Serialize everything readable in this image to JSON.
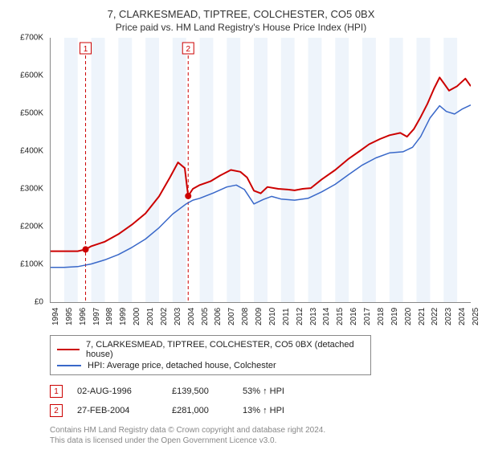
{
  "title_main": "7, CLARKESMEAD, TIPTREE, COLCHESTER, CO5 0BX",
  "title_sub": "Price paid vs. HM Land Registry's House Price Index (HPI)",
  "chart": {
    "type": "line",
    "background_color": "#ffffff",
    "plot_bg_color": "#ffffff",
    "band_color": "#eef4fb",
    "marker_line_color": "#cc0000",
    "x_start_year": 1994,
    "x_end_year": 2025,
    "x_tick_years": [
      1994,
      1995,
      1996,
      1997,
      1998,
      1999,
      2000,
      2001,
      2002,
      2003,
      2004,
      2005,
      2006,
      2007,
      2008,
      2009,
      2010,
      2011,
      2012,
      2013,
      2014,
      2015,
      2016,
      2017,
      2018,
      2019,
      2020,
      2021,
      2022,
      2023,
      2024,
      2025
    ],
    "ylim": [
      0,
      700000
    ],
    "ytick_step": 100000,
    "y_tick_labels": [
      "£0",
      "£100K",
      "£200K",
      "£300K",
      "£400K",
      "£500K",
      "£600K",
      "£700K"
    ],
    "grid": false,
    "series": [
      {
        "id": "property",
        "color": "#cc0000",
        "width": 2,
        "points": [
          [
            1994.0,
            135000
          ],
          [
            1995.0,
            135000
          ],
          [
            1996.0,
            135000
          ],
          [
            1996.58,
            139500
          ],
          [
            1997.0,
            148000
          ],
          [
            1998.0,
            160000
          ],
          [
            1999.0,
            180000
          ],
          [
            2000.0,
            205000
          ],
          [
            2001.0,
            235000
          ],
          [
            2002.0,
            280000
          ],
          [
            2002.8,
            330000
          ],
          [
            2003.4,
            370000
          ],
          [
            2003.9,
            355000
          ],
          [
            2004.15,
            281000
          ],
          [
            2004.5,
            300000
          ],
          [
            2005.0,
            310000
          ],
          [
            2005.8,
            320000
          ],
          [
            2006.5,
            335000
          ],
          [
            2007.3,
            350000
          ],
          [
            2008.0,
            345000
          ],
          [
            2008.5,
            330000
          ],
          [
            2009.0,
            295000
          ],
          [
            2009.5,
            288000
          ],
          [
            2010.0,
            305000
          ],
          [
            2010.8,
            300000
          ],
          [
            2011.5,
            298000
          ],
          [
            2012.0,
            296000
          ],
          [
            2012.6,
            300000
          ],
          [
            2013.2,
            302000
          ],
          [
            2014.0,
            325000
          ],
          [
            2015.0,
            350000
          ],
          [
            2016.0,
            380000
          ],
          [
            2016.8,
            400000
          ],
          [
            2017.5,
            418000
          ],
          [
            2018.3,
            432000
          ],
          [
            2019.0,
            442000
          ],
          [
            2019.8,
            448000
          ],
          [
            2020.3,
            438000
          ],
          [
            2020.8,
            458000
          ],
          [
            2021.3,
            490000
          ],
          [
            2021.8,
            525000
          ],
          [
            2022.3,
            566000
          ],
          [
            2022.7,
            595000
          ],
          [
            2023.0,
            580000
          ],
          [
            2023.4,
            560000
          ],
          [
            2024.0,
            572000
          ],
          [
            2024.6,
            592000
          ],
          [
            2025.0,
            572000
          ]
        ]
      },
      {
        "id": "hpi",
        "color": "#3968c9",
        "width": 1.5,
        "points": [
          [
            1994.0,
            92000
          ],
          [
            1995.0,
            92000
          ],
          [
            1996.0,
            94000
          ],
          [
            1997.0,
            101000
          ],
          [
            1998.0,
            112000
          ],
          [
            1999.0,
            126000
          ],
          [
            2000.0,
            145000
          ],
          [
            2001.0,
            167000
          ],
          [
            2002.0,
            197000
          ],
          [
            2003.0,
            233000
          ],
          [
            2004.0,
            260000
          ],
          [
            2004.5,
            270000
          ],
          [
            2005.0,
            275000
          ],
          [
            2006.0,
            289000
          ],
          [
            2007.0,
            305000
          ],
          [
            2007.7,
            310000
          ],
          [
            2008.3,
            298000
          ],
          [
            2009.0,
            260000
          ],
          [
            2009.7,
            272000
          ],
          [
            2010.3,
            280000
          ],
          [
            2011.0,
            273000
          ],
          [
            2012.0,
            270000
          ],
          [
            2013.0,
            275000
          ],
          [
            2014.0,
            292000
          ],
          [
            2015.0,
            312000
          ],
          [
            2016.0,
            338000
          ],
          [
            2017.0,
            363000
          ],
          [
            2018.0,
            382000
          ],
          [
            2019.0,
            395000
          ],
          [
            2020.0,
            398000
          ],
          [
            2020.7,
            410000
          ],
          [
            2021.3,
            438000
          ],
          [
            2022.0,
            488000
          ],
          [
            2022.7,
            520000
          ],
          [
            2023.2,
            505000
          ],
          [
            2023.8,
            498000
          ],
          [
            2024.4,
            512000
          ],
          [
            2025.0,
            522000
          ]
        ]
      }
    ],
    "transactions_markers": [
      {
        "label": "1",
        "year": 1996.58,
        "value": 139500
      },
      {
        "label": "2",
        "year": 2004.15,
        "value": 281000
      }
    ]
  },
  "legend": {
    "items": [
      {
        "color": "#cc0000",
        "label": "7, CLARKESMEAD, TIPTREE, COLCHESTER, CO5 0BX (detached house)"
      },
      {
        "color": "#3968c9",
        "label": "HPI: Average price, detached house, Colchester"
      }
    ]
  },
  "transactions": [
    {
      "marker": "1",
      "date": "02-AUG-1996",
      "price": "£139,500",
      "delta": "53% ↑ HPI",
      "marker_color": "#cc0000"
    },
    {
      "marker": "2",
      "date": "27-FEB-2004",
      "price": "£281,000",
      "delta": "13% ↑ HPI",
      "marker_color": "#cc0000"
    }
  ],
  "footer": {
    "line1": "Contains HM Land Registry data © Crown copyright and database right 2024.",
    "line2": "This data is licensed under the Open Government Licence v3.0."
  },
  "style": {
    "title_fontsize": 13,
    "subtitle_fontsize": 12,
    "axis_label_fontsize": 10,
    "legend_fontsize": 11,
    "footer_color": "#888888",
    "footer_fontsize": 10,
    "axis_color": "#888888",
    "marker_dash": "4,3",
    "marker_dot_radius": 4
  }
}
